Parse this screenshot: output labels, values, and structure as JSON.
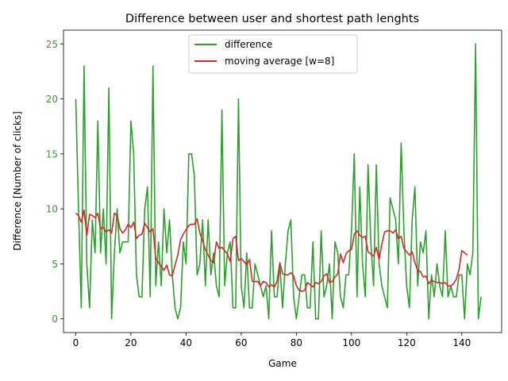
{
  "chart_data": {
    "type": "line",
    "title": "Difference between user and shortest path lenghts",
    "xlabel": "Game",
    "ylabel": "Difference [Number of clicks]",
    "xlim": [
      -4.45,
      154.45
    ],
    "ylim": [
      -1.25,
      26.25
    ],
    "xticks": [
      0,
      20,
      40,
      60,
      80,
      100,
      120,
      140
    ],
    "yticks": [
      0,
      5,
      10,
      15,
      20,
      25
    ],
    "ytick_color": "#2ca02c",
    "grid": false,
    "legend": "upper center",
    "series": [
      {
        "name": "difference",
        "color": "#2ca02c",
        "x_start": 0,
        "values": [
          20,
          10,
          1,
          23,
          5,
          1,
          9,
          6,
          18,
          6,
          10,
          5,
          21,
          0,
          6,
          10,
          6,
          7,
          7,
          7,
          18,
          15,
          4,
          2,
          2,
          10,
          12,
          2,
          23,
          3,
          7,
          3,
          10,
          6,
          9,
          4,
          1,
          0,
          1,
          7,
          5,
          15,
          15,
          13,
          4,
          5,
          9,
          3,
          9,
          4,
          6,
          3,
          2,
          19,
          3,
          6,
          7,
          1,
          1,
          20,
          3,
          1,
          6,
          1,
          1,
          5,
          4,
          3,
          2,
          3,
          0,
          8,
          2,
          2,
          5,
          1,
          5,
          8,
          9,
          2,
          0,
          2,
          4,
          4,
          1,
          1,
          7,
          0,
          0,
          8,
          2,
          3,
          5,
          0,
          7,
          6,
          2,
          1,
          4,
          4,
          8,
          15,
          2,
          12,
          5,
          2,
          14,
          7,
          3,
          14,
          5,
          3,
          2,
          1,
          11,
          10,
          9,
          5,
          16,
          8,
          3,
          1,
          9,
          12,
          3,
          7,
          6,
          8,
          0,
          4,
          2,
          5,
          3,
          2,
          8,
          2,
          3,
          2,
          2,
          4,
          4,
          0,
          5,
          4,
          6,
          25,
          0,
          2
        ]
      },
      {
        "name": "moving average [w=8]",
        "color": "#d62728",
        "x_start": 0,
        "values": [
          9.6,
          9.4,
          8.8,
          9.9,
          7.6,
          9.5,
          9.4,
          9.2,
          9.6,
          8.2,
          8.3,
          7.9,
          8.1,
          7.8,
          9.6,
          9.4,
          8.2,
          7.8,
          8.1,
          8.6,
          8.3,
          8.8,
          7.3,
          7.6,
          7.7,
          8.7,
          8.3,
          7.9,
          8.2,
          5.5,
          5.1,
          4.8,
          4.4,
          4.9,
          4.0,
          3.9,
          4.9,
          5.8,
          7.2,
          7.7,
          8.1,
          8.5,
          8.6,
          8.6,
          9.1,
          7.8,
          7.1,
          6.3,
          5.8,
          5.3,
          5.1,
          7.0,
          6.4,
          6.5,
          6.2,
          5.9,
          5.2,
          7.3,
          7.5,
          5.3,
          5.5,
          5.2,
          4.9,
          5.4,
          3.4,
          3.4,
          3.4,
          3.0,
          3.4,
          3.3,
          2.9,
          3.1,
          2.9,
          3.4,
          5.1,
          4.1,
          4.0,
          4.0,
          4.2,
          3.9,
          3.0,
          2.6,
          2.5,
          2.6,
          3.3,
          3.1,
          2.9,
          3.3,
          3.2,
          3.4,
          3.9,
          4.1,
          3.3,
          3.4,
          3.8,
          4.1,
          5.9,
          5.1,
          5.9,
          6.2,
          6.3,
          7.7,
          8.0,
          7.6,
          7.4,
          7.5,
          6.1,
          5.9,
          5.7,
          6.5,
          5.4,
          6.8,
          7.9,
          8.0,
          8.0,
          7.8,
          8.1,
          7.3,
          7.5,
          6.4,
          6.1,
          5.8,
          6.1,
          5.1,
          4.4,
          4.3,
          3.8,
          3.9,
          3.2,
          3.5,
          3.4,
          3.3,
          3.3,
          3.2,
          3.3,
          3.0,
          3.0,
          3.2,
          3.6,
          4.5,
          6.2,
          6.0,
          5.8
        ]
      }
    ]
  }
}
